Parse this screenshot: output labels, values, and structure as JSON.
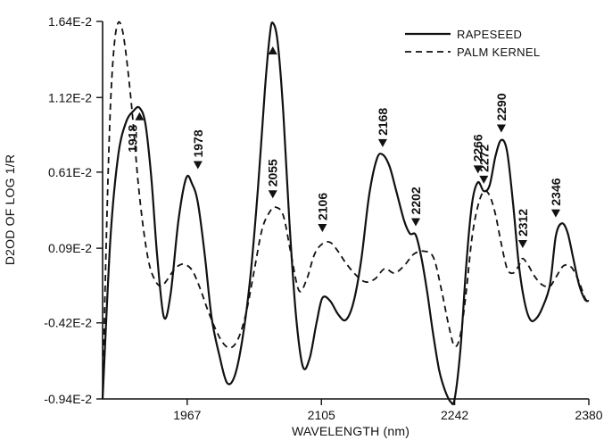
{
  "chart_data": {
    "type": "line",
    "xlabel": "WAVELENGTH (nm)",
    "ylabel": "D2OD OF LOG 1/R",
    "xlim": [
      1880,
      2380
    ],
    "ylim": [
      -0.0094,
      0.0164
    ],
    "x_ticks": [
      1967,
      2105,
      2242,
      2380
    ],
    "x_tick_labels": [
      "1967",
      "2105",
      "2242",
      "2380"
    ],
    "y_ticks": [
      -0.0094,
      -0.0042,
      0.0009,
      0.0061,
      0.0112,
      0.0164
    ],
    "y_tick_labels": [
      "-0.94E-2",
      "-0.42E-2",
      "0.09E-2",
      "0.61E-2",
      "1.12E-2",
      "1.64E-2"
    ],
    "legend_position": "top-right",
    "series": [
      {
        "name": "RAPESEED",
        "style": "solid",
        "x": [
          1880,
          1888,
          1896,
          1904,
          1912,
          1918,
          1924,
          1930,
          1936,
          1943,
          1950,
          1958,
          1966,
          1972,
          1978,
          1985,
          1992,
          2000,
          2008,
          2016,
          2024,
          2032,
          2040,
          2047,
          2052,
          2055,
          2060,
          2066,
          2072,
          2079,
          2086,
          2093,
          2100,
          2106,
          2114,
          2122,
          2130,
          2138,
          2146,
          2154,
          2162,
          2168,
          2175,
          2182,
          2190,
          2196,
          2202,
          2208,
          2214,
          2220,
          2226,
          2232,
          2238,
          2242,
          2248,
          2254,
          2260,
          2266,
          2272,
          2278,
          2284,
          2290,
          2296,
          2302,
          2308,
          2314,
          2320,
          2326,
          2332,
          2340,
          2346,
          2352,
          2358,
          2364,
          2370,
          2376,
          2380
        ],
        "y": [
          -0.0094,
          0.0015,
          0.0072,
          0.0095,
          0.0103,
          0.0105,
          0.0094,
          0.0058,
          0.0005,
          -0.0038,
          -0.0022,
          0.0028,
          0.0057,
          0.0053,
          0.004,
          0.0005,
          -0.0038,
          -0.0064,
          -0.0083,
          -0.0078,
          -0.0052,
          -0.001,
          0.0052,
          0.0118,
          0.0155,
          0.0163,
          0.015,
          0.01,
          0.0028,
          -0.0038,
          -0.0072,
          -0.0066,
          -0.0042,
          -0.0025,
          -0.0027,
          -0.0036,
          -0.004,
          -0.0028,
          0.0001,
          0.0045,
          0.007,
          0.0073,
          0.0065,
          0.0048,
          0.0028,
          0.0019,
          0.0018,
          0.0002,
          -0.0022,
          -0.005,
          -0.0074,
          -0.0088,
          -0.0096,
          -0.0094,
          -0.006,
          -0.0002,
          0.004,
          0.0054,
          0.0048,
          0.0052,
          0.0072,
          0.0083,
          0.0075,
          0.004,
          -0.0002,
          -0.0028,
          -0.004,
          -0.0039,
          -0.0032,
          -0.0016,
          0.0017,
          0.0026,
          0.002,
          0.0002,
          -0.0016,
          -0.0026,
          -0.0027
        ]
      },
      {
        "name": "PALM KERNEL",
        "style": "dashed",
        "x": [
          1880,
          1884,
          1888,
          1892,
          1896,
          1900,
          1904,
          1910,
          1916,
          1922,
          1928,
          1934,
          1940,
          1946,
          1952,
          1958,
          1964,
          1972,
          1980,
          1988,
          1996,
          2004,
          2012,
          2020,
          2028,
          2036,
          2044,
          2052,
          2058,
          2066,
          2074,
          2082,
          2090,
          2098,
          2106,
          2114,
          2122,
          2130,
          2140,
          2150,
          2160,
          2170,
          2180,
          2190,
          2200,
          2210,
          2220,
          2228,
          2236,
          2242,
          2248,
          2254,
          2260,
          2266,
          2272,
          2278,
          2284,
          2290,
          2296,
          2302,
          2308,
          2312,
          2318,
          2324,
          2332,
          2340,
          2346,
          2354,
          2362,
          2370,
          2376,
          2380
        ],
        "y": [
          -0.0094,
          0.002,
          0.0105,
          0.0148,
          0.0163,
          0.0159,
          0.0142,
          0.0105,
          0.0058,
          0.0022,
          -0.0002,
          -0.0013,
          -0.0017,
          -0.0013,
          -0.0007,
          -0.0003,
          -0.0002,
          -0.0006,
          -0.0018,
          -0.0033,
          -0.0046,
          -0.0056,
          -0.0059,
          -0.0052,
          -0.0034,
          -0.0006,
          0.0022,
          0.0034,
          0.0037,
          0.0031,
          0.0004,
          -0.002,
          -0.0012,
          0.0005,
          0.0012,
          0.0013,
          0.0007,
          -0.0001,
          -0.0009,
          -0.0014,
          -0.0012,
          -0.0005,
          -0.0008,
          -0.0003,
          0.0005,
          0.0007,
          0.0003,
          -0.0018,
          -0.0044,
          -0.0058,
          -0.005,
          -0.002,
          0.0017,
          0.0038,
          0.0048,
          0.0045,
          0.0032,
          0.0012,
          -0.0005,
          -0.0008,
          -0.0003,
          0.0002,
          -0.0003,
          -0.001,
          -0.0016,
          -0.0017,
          -0.0011,
          -0.0003,
          -0.0004,
          -0.0014,
          -0.0025,
          -0.0028
        ]
      }
    ],
    "annotations": [
      {
        "label": "1918",
        "x": 1918,
        "y": 0.0105,
        "direction": "up"
      },
      {
        "label": "1978",
        "x": 1978,
        "y": 0.006,
        "direction": "down"
      },
      {
        "label": "2055",
        "x": 2055,
        "y": 0.015,
        "direction": "up"
      },
      {
        "label": "2055",
        "x": 2055,
        "y": 0.004,
        "direction": "down"
      },
      {
        "label": "2106",
        "x": 2106,
        "y": 0.0017,
        "direction": "down"
      },
      {
        "label": "2168",
        "x": 2168,
        "y": 0.0075,
        "direction": "down"
      },
      {
        "label": "2202",
        "x": 2202,
        "y": 0.0021,
        "direction": "down"
      },
      {
        "label": "2266",
        "x": 2266,
        "y": 0.0057,
        "direction": "down"
      },
      {
        "label": "2272",
        "x": 2272,
        "y": 0.005,
        "direction": "down"
      },
      {
        "label": "2290",
        "x": 2290,
        "y": 0.0085,
        "direction": "down"
      },
      {
        "label": "2312",
        "x": 2312,
        "y": 0.0006,
        "direction": "down"
      },
      {
        "label": "2346",
        "x": 2346,
        "y": 0.0027,
        "direction": "down"
      }
    ]
  }
}
